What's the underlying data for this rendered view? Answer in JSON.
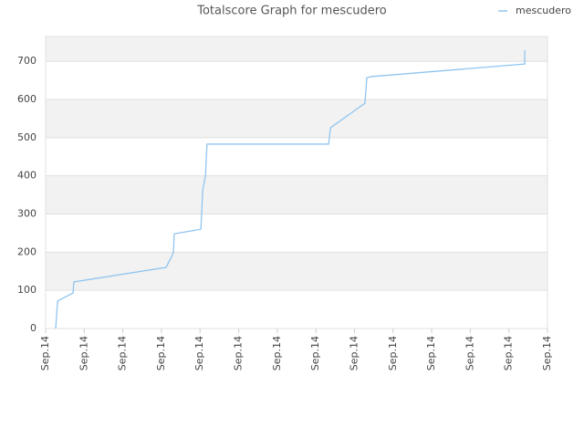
{
  "chart_data": {
    "type": "line",
    "title": "Totalscore Graph for mescudero",
    "x": [
      0.26,
      0.31,
      0.71,
      0.73,
      3.12,
      3.31,
      3.33,
      4.02,
      4.04,
      4.07,
      4.14,
      4.18,
      7.33,
      7.38,
      8.27,
      8.32,
      8.44,
      12.41,
      12.41
    ],
    "series": [
      {
        "name": "mescudero",
        "color": "#90c4f0",
        "values": [
          0,
          72,
          93,
          122,
          160,
          198,
          248,
          260,
          296,
          363,
          401,
          483,
          483,
          526,
          590,
          657,
          660,
          693,
          729
        ]
      }
    ],
    "xlim": [
      0,
      13
    ],
    "xticks": [
      {
        "value": 0,
        "label": "Sep.14"
      },
      {
        "value": 1,
        "label": "Sep.14"
      },
      {
        "value": 2,
        "label": "Sep.14"
      },
      {
        "value": 3,
        "label": "Sep.14"
      },
      {
        "value": 4,
        "label": "Sep.14"
      },
      {
        "value": 5,
        "label": "Sep.14"
      },
      {
        "value": 6,
        "label": "Sep.14"
      },
      {
        "value": 7,
        "label": "Sep.14"
      },
      {
        "value": 8,
        "label": "Sep.14"
      },
      {
        "value": 9,
        "label": "Sep.14"
      },
      {
        "value": 10,
        "label": "Sep.14"
      },
      {
        "value": 11,
        "label": "Sep.14"
      },
      {
        "value": 12,
        "label": "Sep.14"
      },
      {
        "value": 13,
        "label": "Sep.14"
      }
    ],
    "ylim": [
      0,
      765
    ],
    "yticks": [
      0,
      100,
      200,
      300,
      400,
      500,
      600,
      700
    ],
    "grid": true,
    "legend": "top-right"
  }
}
